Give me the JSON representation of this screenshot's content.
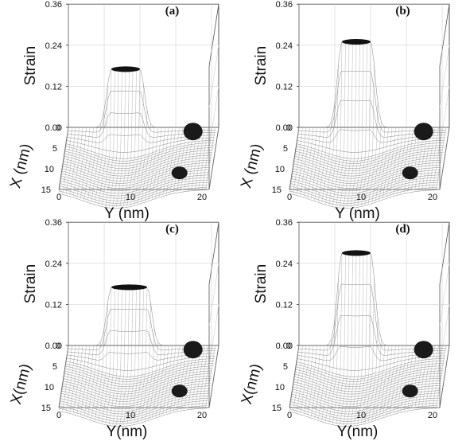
{
  "chart_data": [
    {
      "type": "surface3d",
      "panel_label": "(a)",
      "zlabel": "Strain",
      "xlabel": "X (nm)",
      "ylabel": "Y (nm)",
      "zticks": [
        "0.00",
        "0.12",
        "0.24",
        "0.36"
      ],
      "xticks": [
        "0",
        "5",
        "10",
        "15"
      ],
      "yticks": [
        "0",
        "10",
        "20"
      ],
      "zlim": [
        0,
        0.36
      ],
      "xlim": [
        0,
        15
      ],
      "ylim": [
        0,
        21
      ],
      "peak_strain": 0.17,
      "peak_y_range": [
        6,
        10
      ]
    },
    {
      "type": "surface3d",
      "panel_label": "(b)",
      "zlabel": "Strain",
      "xlabel": "X (nm)",
      "ylabel": "Y (nm)",
      "zticks": [
        "0.00",
        "0.12",
        "0.24",
        "0.36"
      ],
      "xticks": [
        "0",
        "5",
        "10",
        "15"
      ],
      "yticks": [
        "0",
        "10",
        "20"
      ],
      "zlim": [
        0,
        0.36
      ],
      "xlim": [
        0,
        15
      ],
      "ylim": [
        0,
        21
      ],
      "peak_strain": 0.25,
      "peak_y_range": [
        6,
        10
      ]
    },
    {
      "type": "surface3d",
      "panel_label": "(c)",
      "zlabel": "Strain",
      "xlabel": "X(nm)",
      "ylabel": "Y(nm)",
      "zticks": [
        "0.00",
        "0.12",
        "0.24",
        "0.36"
      ],
      "xticks": [
        "0",
        "5",
        "10",
        "15"
      ],
      "yticks": [
        "0",
        "10",
        "20"
      ],
      "zlim": [
        0,
        0.36
      ],
      "xlim": [
        0,
        15
      ],
      "ylim": [
        0,
        21
      ],
      "peak_strain": 0.17,
      "peak_y_range": [
        6,
        11
      ]
    },
    {
      "type": "surface3d",
      "panel_label": "(d)",
      "zlabel": "Strain",
      "xlabel": "X(nm)",
      "ylabel": "Y(nm)",
      "zticks": [
        "0.00",
        "0.12",
        "0.24",
        "0.36"
      ],
      "xticks": [
        "0",
        "5",
        "10",
        "15"
      ],
      "yticks": [
        "0",
        "10",
        "20"
      ],
      "zlim": [
        0,
        0.36
      ],
      "xlim": [
        0,
        15
      ],
      "ylim": [
        0,
        21
      ],
      "peak_strain": 0.27,
      "peak_y_range": [
        6,
        10
      ]
    }
  ]
}
